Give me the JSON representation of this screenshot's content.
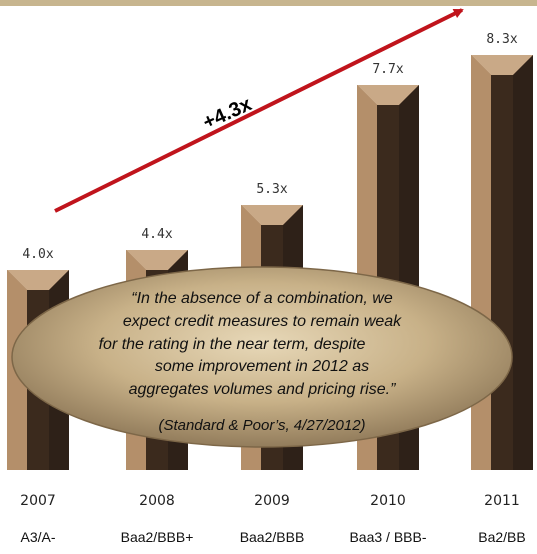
{
  "chart_data": {
    "type": "bar",
    "categories": [
      "2007",
      "2008",
      "2009",
      "2010",
      "2011"
    ],
    "values": [
      4.0,
      4.4,
      5.3,
      7.7,
      8.3
    ],
    "value_labels": [
      "4.0x",
      "4.4x",
      "5.3x",
      "7.7x",
      "8.3x"
    ],
    "ratings": [
      "A3/A-",
      "Baa2/BBB+",
      "Baa2/BBB",
      "Baa3 / BBB-",
      "Ba2/BB"
    ],
    "ylim": [
      0,
      8.3
    ],
    "grid": false,
    "annotation": {
      "text": "+4.3x",
      "arrow_from": "2007",
      "arrow_to": "2011"
    },
    "callout": {
      "lines": [
        "“In the absence of a combination, we",
        "expect credit measures to remain weak",
        "for the rating in the near term, despite",
        "some improvement in 2012 as",
        "aggregates volumes and pricing rise.”"
      ],
      "source": "(Standard & Poor’s, 4/27/2012)"
    },
    "colors": {
      "bar_light": "#c9a987",
      "bar_mid": "#8a6748",
      "bar_dark": "#2e2118",
      "arrow": "#c0141c",
      "callout_fill": "#c8b188",
      "top_band": "#c7b58f"
    }
  }
}
